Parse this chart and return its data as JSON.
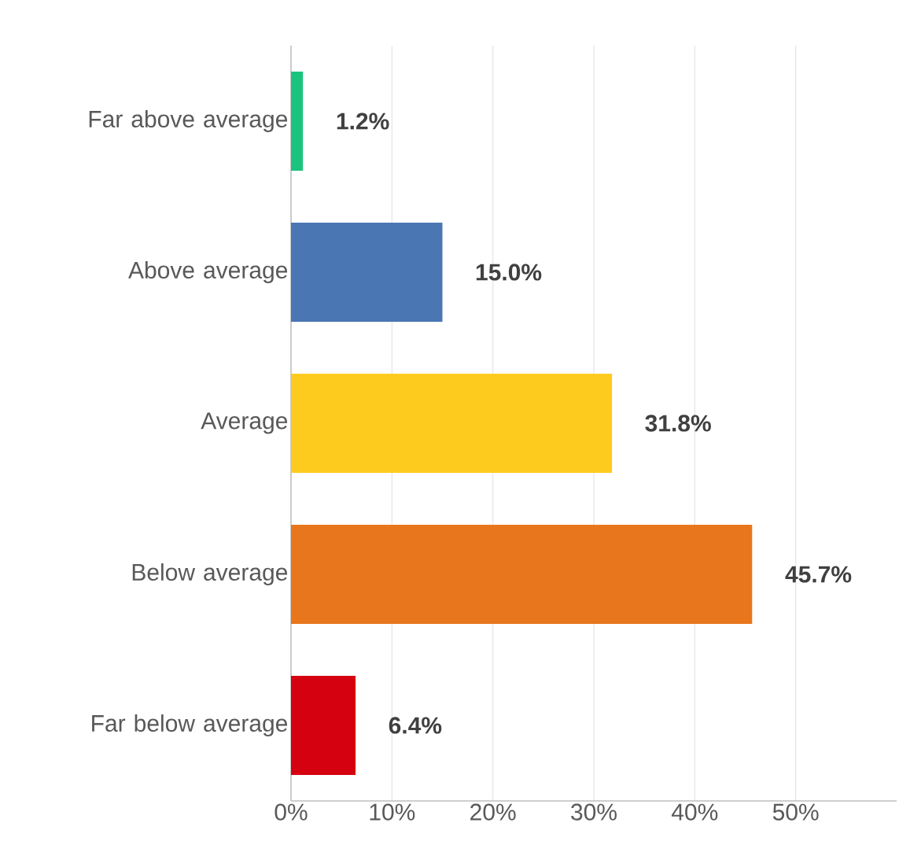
{
  "chart_data": {
    "type": "bar",
    "orientation": "horizontal",
    "categories": [
      "Far above average",
      "Above average",
      "Average",
      "Below average",
      "Far below average"
    ],
    "values": [
      1.2,
      15.0,
      31.8,
      45.7,
      6.4
    ],
    "colors": [
      "#1bc47d",
      "#4a77b4",
      "#fdca1e",
      "#e8761c",
      "#d50010"
    ],
    "value_labels": [
      "1.2%",
      "15.0%",
      "31.8%",
      "45.7%",
      "6.4%"
    ],
    "xlim": [
      0,
      60
    ],
    "xticks": [
      {
        "value": 0,
        "label": "0%"
      },
      {
        "value": 10,
        "label": "10%"
      },
      {
        "value": 20,
        "label": "20%"
      },
      {
        "value": 30,
        "label": "30%"
      },
      {
        "value": 40,
        "label": "40%"
      },
      {
        "value": 50,
        "label": "50%"
      }
    ],
    "grid": "x"
  }
}
